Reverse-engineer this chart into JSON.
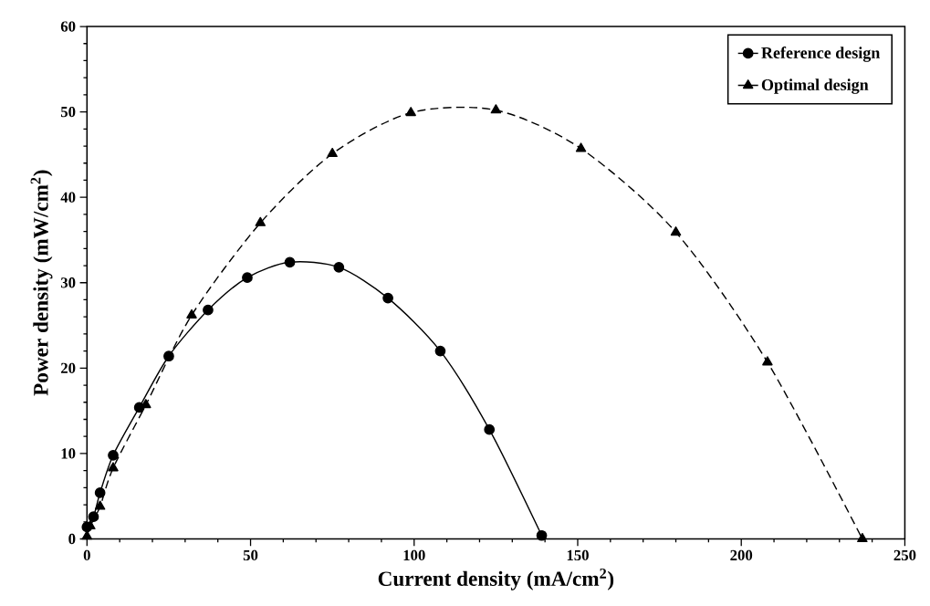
{
  "chart_data": {
    "type": "line",
    "xlabel": "Current density (mA/cm$^{2}$)",
    "ylabel": "Power density (mW/cm$^{2}$)",
    "xlim": [
      0,
      250
    ],
    "xticks": [
      0,
      50,
      100,
      150,
      200,
      250
    ],
    "ylim": [
      0,
      60
    ],
    "yticks": [
      0,
      10,
      20,
      30,
      40,
      50,
      60
    ],
    "grid": false,
    "legend": "top right",
    "series": [
      {
        "name": "Reference design",
        "color": "#000000",
        "marker": "circle",
        "line_style": "solid",
        "x": [
          0,
          0.3,
          2,
          4,
          8,
          16,
          25,
          37,
          49,
          62,
          77,
          92,
          108,
          123,
          139
        ],
        "values": [
          1.4,
          null,
          2.6,
          5.4,
          9.8,
          15.4,
          21.4,
          26.8,
          30.6,
          32.4,
          31.8,
          28.2,
          22,
          12.8,
          0.4
        ]
      },
      {
        "name": "Optimal design",
        "color": "#000000",
        "marker": "triangle",
        "line_style": "dashed",
        "x": [
          0,
          1,
          4,
          8,
          18,
          32,
          53,
          75,
          99,
          125,
          151,
          180,
          208,
          237
        ],
        "values": [
          0.3,
          1.5,
          3.8,
          8.3,
          15.7,
          26.2,
          37,
          45.1,
          49.9,
          50.2,
          45.7,
          35.9,
          20.7,
          0
        ]
      }
    ]
  }
}
